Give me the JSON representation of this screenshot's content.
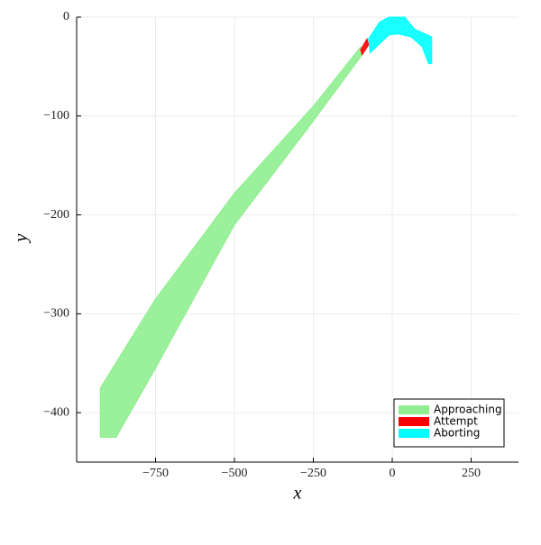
{
  "chart_data": {
    "type": "polygon",
    "x_label": "x",
    "y_label": "y",
    "xlim": [
      -1000,
      400
    ],
    "ylim": [
      -450,
      0
    ],
    "xticks": [
      {
        "value": -750,
        "label": "−750"
      },
      {
        "value": -500,
        "label": "−500"
      },
      {
        "value": -250,
        "label": "−250"
      },
      0,
      250
    ],
    "yticks": [
      0,
      {
        "value": -100,
        "label": "−100"
      },
      {
        "value": -200,
        "label": "−200"
      },
      {
        "value": -300,
        "label": "−300"
      },
      {
        "value": -400,
        "label": "−400"
      }
    ],
    "grid": true,
    "legend": "bottom-right",
    "series": [
      {
        "name": "Approaching",
        "color": "#90ee90",
        "x": [
          -925,
          -750,
          -500,
          -250,
          -100,
          -95,
          -250,
          -500,
          -750,
          -875,
          -925
        ],
        "y": [
          -375,
          -285,
          -178,
          -90,
          -30,
          -38,
          -105,
          -210,
          -355,
          -425,
          -425
        ]
      },
      {
        "name": "Attempt",
        "color": "#ff0000",
        "x": [
          -100,
          -80,
          -75,
          -95
        ],
        "y": [
          -33,
          -22,
          -28,
          -38
        ]
      },
      {
        "name": "Aborting",
        "color": "#00ffff",
        "x": [
          -75,
          -40,
          -10,
          40,
          70,
          125,
          125,
          115,
          95,
          60,
          20,
          -10,
          -70
        ],
        "y": [
          -22,
          -5,
          0,
          0,
          -12,
          -20,
          -47,
          -47,
          -30,
          -20,
          -17,
          -18,
          -36
        ]
      }
    ]
  }
}
